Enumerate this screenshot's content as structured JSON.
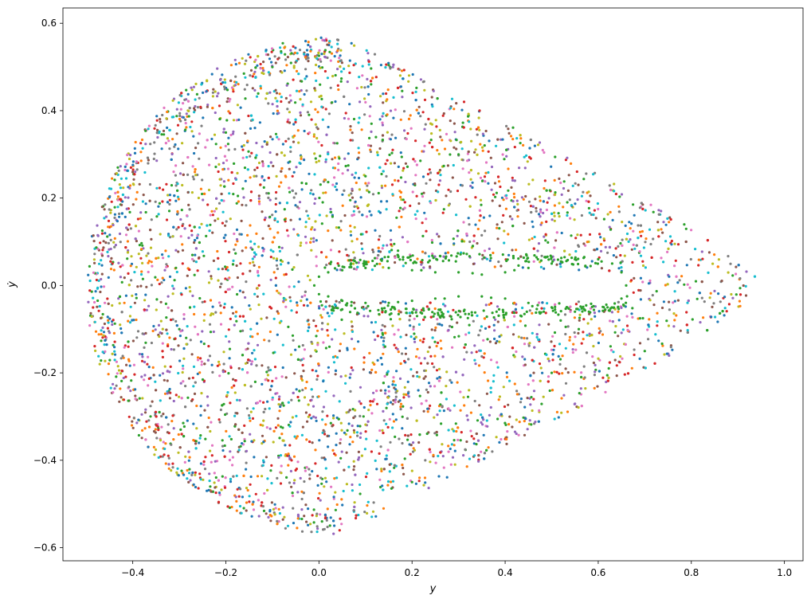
{
  "chart_data": {
    "type": "scatter",
    "title": "",
    "xlabel": "y",
    "ylabel": "ẏ",
    "xlim": [
      -0.55,
      1.04
    ],
    "ylim": [
      -0.63,
      0.635
    ],
    "xticks": [
      -0.4,
      -0.2,
      0.0,
      0.2,
      0.4,
      0.6,
      0.8,
      1.0
    ],
    "xtick_labels": [
      "−0.4",
      "−0.2",
      "0.0",
      "0.2",
      "0.4",
      "0.6",
      "0.8",
      "1.0"
    ],
    "yticks": [
      -0.6,
      -0.4,
      -0.2,
      0.0,
      0.2,
      0.4,
      0.6
    ],
    "ytick_labels": [
      "−0.6",
      "−0.4",
      "−0.2",
      "0.0",
      "0.2",
      "0.4",
      "0.6"
    ],
    "grid": false,
    "legend": "none",
    "marker_size": 2,
    "colors": [
      "#1f77b4",
      "#ff7f0e",
      "#2ca02c",
      "#d62728",
      "#9467bd",
      "#8c564b",
      "#e377c2",
      "#7f7f7f",
      "#bcbd22",
      "#17becf"
    ],
    "series": [
      {
        "color": "#2ca02c",
        "note_points": [
          [
            0.0,
            0.02
          ],
          [
            0.02,
            0.03
          ],
          [
            0.05,
            0.035
          ],
          [
            0.1,
            0.04
          ],
          [
            0.15,
            0.04
          ],
          [
            0.2,
            0.035
          ],
          [
            0.25,
            0.03
          ],
          [
            0.3,
            0.03
          ],
          [
            0.35,
            0.025
          ],
          [
            0.4,
            0.03
          ],
          [
            0.45,
            0.04
          ],
          [
            0.5,
            0.05
          ],
          [
            0.55,
            0.06
          ],
          [
            0.6,
            0.06
          ],
          [
            0.63,
            0.05
          ],
          [
            0.65,
            0.03
          ],
          [
            0.66,
            0.0
          ],
          [
            0.65,
            -0.03
          ],
          [
            0.62,
            -0.05
          ],
          [
            0.58,
            -0.06
          ],
          [
            0.55,
            -0.06
          ],
          [
            0.5,
            -0.05
          ],
          [
            0.45,
            -0.04
          ],
          [
            0.4,
            -0.03
          ],
          [
            0.35,
            -0.025
          ],
          [
            0.3,
            -0.025
          ],
          [
            0.25,
            -0.03
          ],
          [
            0.2,
            -0.035
          ],
          [
            0.15,
            -0.04
          ],
          [
            0.1,
            -0.04
          ],
          [
            0.05,
            -0.035
          ],
          [
            0.02,
            -0.025
          ],
          [
            0.0,
            -0.02
          ],
          [
            -0.01,
            0.0
          ],
          [
            0.12,
            0.045
          ],
          [
            0.22,
            0.035
          ],
          [
            0.33,
            0.028
          ],
          [
            0.42,
            0.035
          ],
          [
            0.52,
            0.055
          ],
          [
            0.57,
            0.065
          ],
          [
            0.61,
            -0.058
          ],
          [
            0.47,
            -0.045
          ],
          [
            0.37,
            -0.028
          ],
          [
            0.27,
            -0.03
          ],
          [
            0.17,
            -0.038
          ],
          [
            0.07,
            -0.038
          ],
          [
            0.3,
            0.3
          ],
          [
            0.1,
            0.25
          ],
          [
            -0.2,
            0.35
          ],
          [
            0.5,
            -0.2
          ],
          [
            -0.3,
            -0.1
          ],
          [
            0.7,
            -0.15
          ],
          [
            0.2,
            -0.45
          ],
          [
            -0.1,
            0.5
          ]
        ]
      }
    ]
  }
}
